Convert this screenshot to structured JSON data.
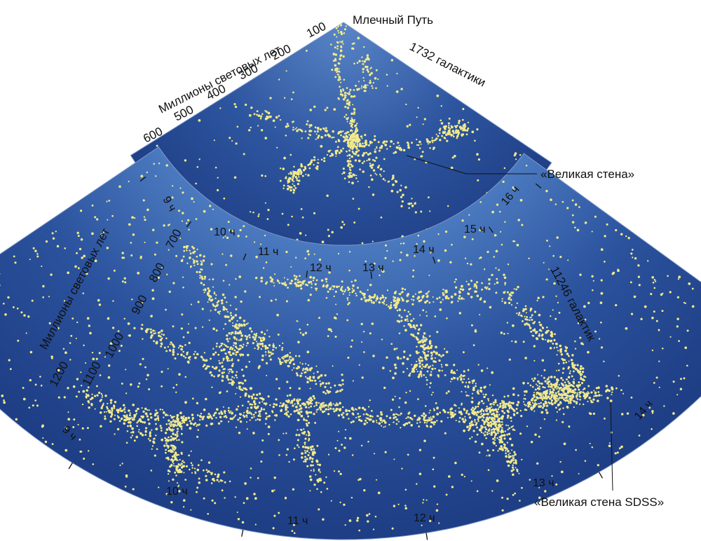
{
  "colors": {
    "background": "#ffffff",
    "wedge_inner": "#5a86c8",
    "wedge_mid": "#2d559f",
    "wedge_outer": "#1f3f86",
    "galaxy": "#f2ea8a",
    "text": "#111111",
    "edge": "#7f98c8"
  },
  "top_panel": {
    "vertex_label": "Млечный Путь",
    "count_label": "1732 галактики",
    "axis_title": "Миллионы световых лет",
    "distance_ticks": [
      "100",
      "200",
      "300",
      "400",
      "500",
      "600"
    ],
    "hour_ticks": [
      "9 ч",
      "10 ч",
      "11 ч",
      "12 ч",
      "13 ч",
      "14 ч",
      "15 ч",
      "16 ч"
    ],
    "annotation": "«Великая стена»",
    "galaxy_count_drawn": 1732
  },
  "bottom_panel": {
    "count_label": "11246 галактик",
    "axis_title": "Миллионы световых лет",
    "distance_ticks": [
      "700",
      "800",
      "900",
      "1000",
      "1100",
      "1200"
    ],
    "hour_ticks": [
      "9 ч",
      "10 ч",
      "11 ч",
      "12 ч",
      "13 ч",
      "14 ч"
    ],
    "annotation": "«Великая стена SDSS»",
    "galaxy_count_drawn": 11246
  }
}
